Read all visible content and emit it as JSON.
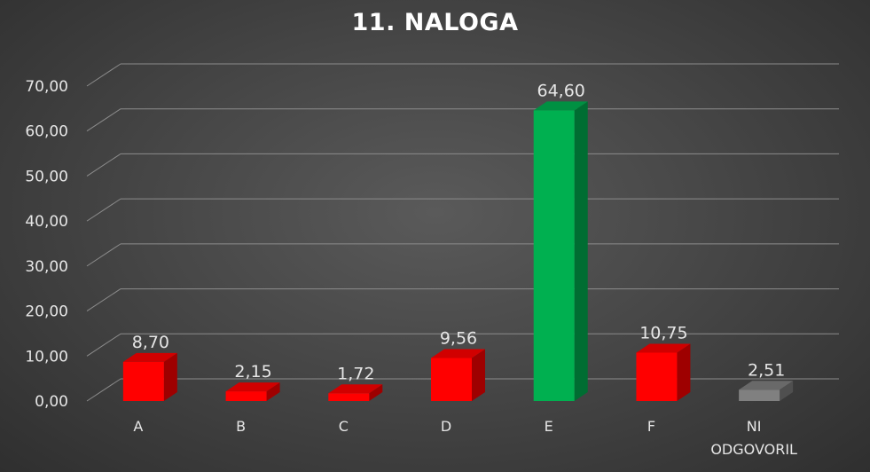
{
  "chart_data": {
    "type": "bar",
    "title": "11. NALOGA",
    "xlabel": "",
    "ylabel": "",
    "categories": [
      "A",
      "B",
      "C",
      "D",
      "E",
      "F",
      "NI ODGOVORIL"
    ],
    "category_lines": [
      [
        "A"
      ],
      [
        "B"
      ],
      [
        "C"
      ],
      [
        "D"
      ],
      [
        "E"
      ],
      [
        "F"
      ],
      [
        "NI",
        "ODGOVORIL"
      ]
    ],
    "values": [
      8.7,
      2.15,
      1.72,
      9.56,
      64.6,
      10.75,
      2.51
    ],
    "value_labels": [
      "8,70",
      "2,15",
      "1,72",
      "9,56",
      "64,60",
      "10,75",
      "2,51"
    ],
    "yticks": [
      "0,00",
      "10,00",
      "20,00",
      "30,00",
      "40,00",
      "50,00",
      "60,00",
      "70,00"
    ],
    "ylim": [
      0,
      70
    ],
    "grid": true,
    "legend": "none",
    "bar_colors": [
      "#ff0000",
      "#ff0000",
      "#ff0000",
      "#ff0000",
      "#00b050",
      "#ff0000",
      "#808080"
    ]
  }
}
